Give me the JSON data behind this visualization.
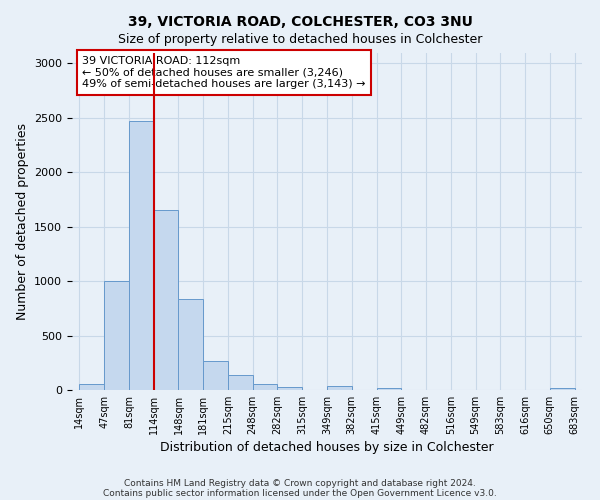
{
  "title1": "39, VICTORIA ROAD, COLCHESTER, CO3 3NU",
  "title2": "Size of property relative to detached houses in Colchester",
  "xlabel": "Distribution of detached houses by size in Colchester",
  "ylabel": "Number of detached properties",
  "footer1": "Contains HM Land Registry data © Crown copyright and database right 2024.",
  "footer2": "Contains public sector information licensed under the Open Government Licence v3.0.",
  "annotation_line1": "39 VICTORIA ROAD: 112sqm",
  "annotation_line2": "← 50% of detached houses are smaller (3,246)",
  "annotation_line3": "49% of semi-detached houses are larger (3,143) →",
  "bar_heights": [
    55,
    1000,
    2470,
    1650,
    840,
    270,
    135,
    55,
    30,
    0,
    35,
    0,
    20,
    0,
    0,
    0,
    0,
    0,
    0,
    20
  ],
  "bin_labels": [
    "14sqm",
    "47sqm",
    "81sqm",
    "114sqm",
    "148sqm",
    "181sqm",
    "215sqm",
    "248sqm",
    "282sqm",
    "315sqm",
    "349sqm",
    "382sqm",
    "415sqm",
    "449sqm",
    "482sqm",
    "516sqm",
    "549sqm",
    "583sqm",
    "616sqm",
    "650sqm",
    "683sqm"
  ],
  "vline_x_bin": 3,
  "vline_color": "#cc0000",
  "bar_facecolor": "#c5d8ee",
  "bar_edgecolor": "#6699cc",
  "annotation_box_edgecolor": "#cc0000",
  "annotation_box_facecolor": "#ffffff",
  "grid_color": "#c8d8e8",
  "background_color": "#e8f0f8",
  "ylim": [
    0,
    3100
  ],
  "yticks": [
    0,
    500,
    1000,
    1500,
    2000,
    2500,
    3000
  ]
}
